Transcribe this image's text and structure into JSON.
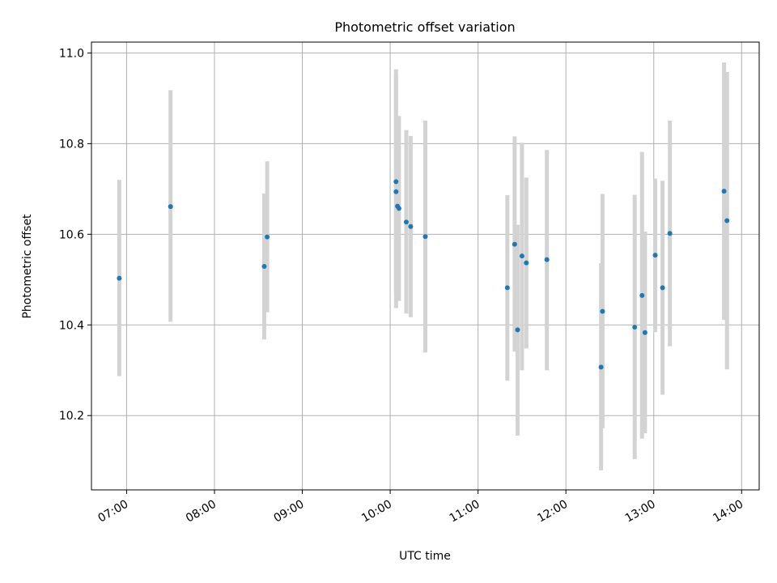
{
  "chart_data": {
    "type": "scatter",
    "title": "Photometric offset variation",
    "xlabel": "UTC time",
    "ylabel": "Photometric offset",
    "xlim": [
      "06:36",
      "14:12"
    ],
    "ylim": [
      10.036,
      11.024
    ],
    "grid": true,
    "x_ticks": [
      "07:00",
      "08:00",
      "09:00",
      "10:00",
      "11:00",
      "12:00",
      "13:00",
      "14:00"
    ],
    "y_ticks": [
      10.2,
      10.4,
      10.6,
      10.8,
      11.0
    ],
    "y_tick_labels": [
      "10.2",
      "10.4",
      "10.6",
      "10.8",
      "11.0"
    ],
    "marker_color": "#1f77b4",
    "errorbar_color": "#d3d3d3",
    "points": [
      {
        "x": "06:55",
        "y": 10.503,
        "ylow": 10.287,
        "yhigh": 10.72
      },
      {
        "x": "07:30",
        "y": 10.661,
        "ylow": 10.407,
        "yhigh": 10.918
      },
      {
        "x": "08:34",
        "y": 10.529,
        "ylow": 10.368,
        "yhigh": 10.69
      },
      {
        "x": "08:36",
        "y": 10.594,
        "ylow": 10.428,
        "yhigh": 10.761
      },
      {
        "x": "10:04",
        "y": 10.716,
        "ylow": 10.47,
        "yhigh": 10.964
      },
      {
        "x": "10:04",
        "y": 10.694,
        "ylow": 10.437,
        "yhigh": 10.951
      },
      {
        "x": "10:05",
        "y": 10.662,
        "ylow": 10.464,
        "yhigh": 10.859
      },
      {
        "x": "10:06",
        "y": 10.657,
        "ylow": 10.453,
        "yhigh": 10.861
      },
      {
        "x": "10:11",
        "y": 10.627,
        "ylow": 10.425,
        "yhigh": 10.83
      },
      {
        "x": "10:14",
        "y": 10.617,
        "ylow": 10.417,
        "yhigh": 10.817
      },
      {
        "x": "10:24",
        "y": 10.595,
        "ylow": 10.339,
        "yhigh": 10.851
      },
      {
        "x": "11:20",
        "y": 10.482,
        "ylow": 10.277,
        "yhigh": 10.686
      },
      {
        "x": "11:25",
        "y": 10.578,
        "ylow": 10.341,
        "yhigh": 10.816
      },
      {
        "x": "11:27",
        "y": 10.389,
        "ylow": 10.156,
        "yhigh": 10.621
      },
      {
        "x": "11:30",
        "y": 10.552,
        "ylow": 10.3,
        "yhigh": 10.802
      },
      {
        "x": "11:33",
        "y": 10.537,
        "ylow": 10.348,
        "yhigh": 10.725
      },
      {
        "x": "11:47",
        "y": 10.544,
        "ylow": 10.3,
        "yhigh": 10.786
      },
      {
        "x": "12:24",
        "y": 10.307,
        "ylow": 10.079,
        "yhigh": 10.536
      },
      {
        "x": "12:25",
        "y": 10.43,
        "ylow": 10.172,
        "yhigh": 10.689
      },
      {
        "x": "12:47",
        "y": 10.395,
        "ylow": 10.104,
        "yhigh": 10.687
      },
      {
        "x": "12:52",
        "y": 10.465,
        "ylow": 10.149,
        "yhigh": 10.782
      },
      {
        "x": "12:54",
        "y": 10.383,
        "ylow": 10.161,
        "yhigh": 10.606
      },
      {
        "x": "13:01",
        "y": 10.554,
        "ylow": 10.384,
        "yhigh": 10.723
      },
      {
        "x": "13:06",
        "y": 10.482,
        "ylow": 10.246,
        "yhigh": 10.718
      },
      {
        "x": "13:11",
        "y": 10.602,
        "ylow": 10.353,
        "yhigh": 10.851
      },
      {
        "x": "13:48",
        "y": 10.695,
        "ylow": 10.411,
        "yhigh": 10.979
      },
      {
        "x": "13:50",
        "y": 10.63,
        "ylow": 10.302,
        "yhigh": 10.958
      }
    ]
  }
}
